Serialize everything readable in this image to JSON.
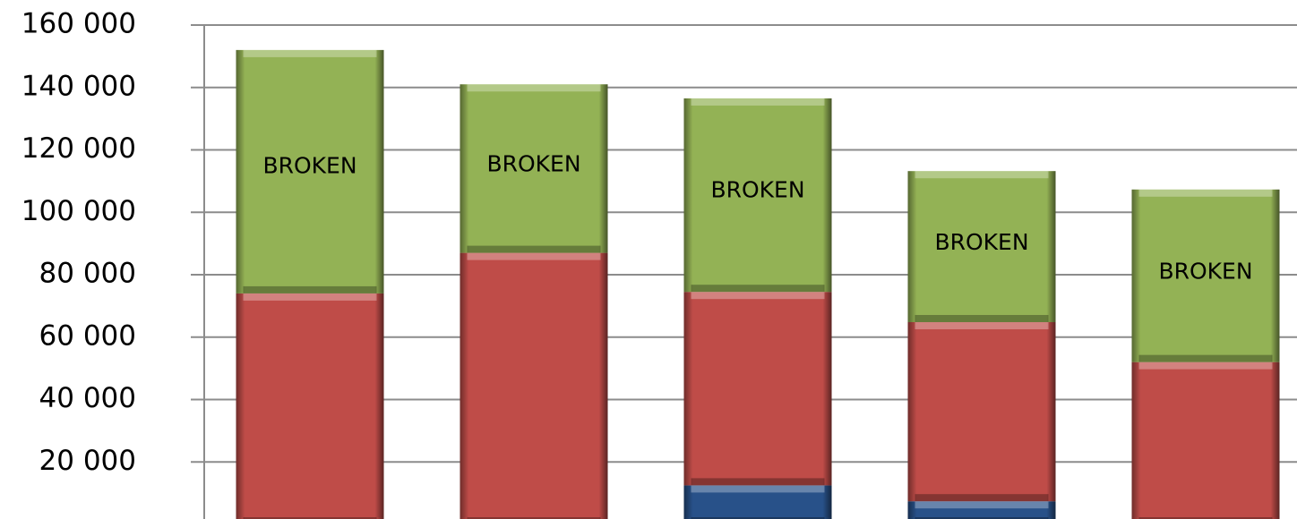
{
  "chart_data": {
    "type": "stacked_bar",
    "series": [
      {
        "color": "#2a5590",
        "values": [
          0,
          0,
          12500,
          7400,
          0
        ]
      },
      {
        "color": "#c9504c",
        "values": [
          74000,
          87000,
          62000,
          57400,
          52000
        ]
      },
      {
        "color": "#9bbb59",
        "values": [
          78000,
          54000,
          62000,
          48400,
          55300
        ]
      }
    ],
    "annotations": [
      "BROKEN",
      "BROKEN",
      "BROKEN",
      "BROKEN",
      "BROKEN"
    ],
    "ylim": [
      0,
      160000
    ],
    "yticks": [
      {
        "value": 20000,
        "label": "20 000"
      },
      {
        "value": 40000,
        "label": "40 000"
      },
      {
        "value": 60000,
        "label": "60 000"
      },
      {
        "value": 80000,
        "label": "80 000"
      },
      {
        "value": 100000,
        "label": "100 000"
      },
      {
        "value": 120000,
        "label": "120 000"
      },
      {
        "value": 140000,
        "label": "140 000"
      },
      {
        "value": 160000,
        "label": "160 000"
      }
    ],
    "grid": true
  }
}
